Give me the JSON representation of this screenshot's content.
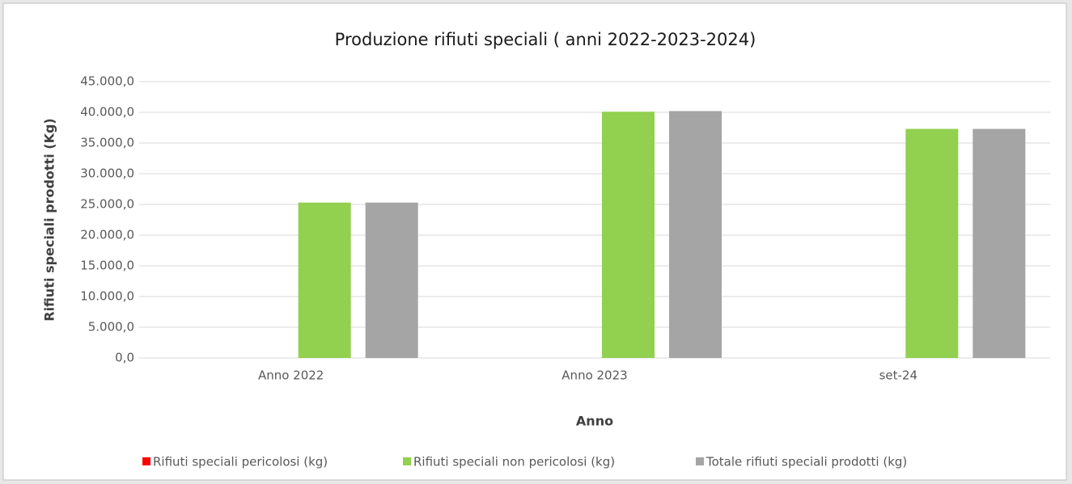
{
  "chart_data": {
    "type": "bar",
    "title": "Produzione rifiuti speciali ( anni 2022-2023-2024)",
    "x_label": "Anno",
    "y_label": "Rifiuti speciali prodotti (Kg)",
    "categories": [
      "Anno 2022",
      "Anno 2023",
      "set-24"
    ],
    "series": [
      {
        "name": "Rifiuti speciali pericolosi (kg)",
        "color": "#ff0000",
        "values": [
          0,
          0,
          0
        ]
      },
      {
        "name": "Rifiuti speciali non pericolosi (kg)",
        "color": "#92d050",
        "values": [
          25300,
          40100,
          37300
        ]
      },
      {
        "name": "Totale rifiuti speciali prodotti (kg)",
        "color": "#a5a5a5",
        "values": [
          25300,
          40200,
          37300
        ]
      }
    ],
    "ylim": [
      0,
      45000
    ],
    "yticks": [
      {
        "value": 0,
        "label": "0,0"
      },
      {
        "value": 5000,
        "label": "5.000,0"
      },
      {
        "value": 10000,
        "label": "10.000,0"
      },
      {
        "value": 15000,
        "label": "15.000,0"
      },
      {
        "value": 20000,
        "label": "20.000,0"
      },
      {
        "value": 25000,
        "label": "25.000,0"
      },
      {
        "value": 30000,
        "label": "30.000,0"
      },
      {
        "value": 35000,
        "label": "35.000,0"
      },
      {
        "value": 40000,
        "label": "40.000,0"
      },
      {
        "value": 45000,
        "label": "45.000,0"
      }
    ],
    "grid": true,
    "legend": "bottom"
  }
}
